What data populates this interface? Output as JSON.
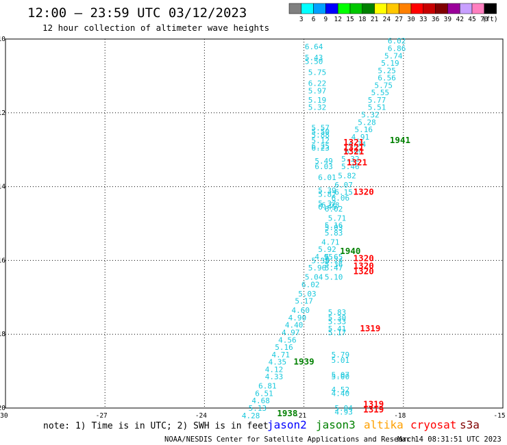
{
  "header": {
    "title": "12:00 — 23:59 UTC 03/12/2023",
    "subtitle": "12 hour collection of altimeter wave heights"
  },
  "colorbar": {
    "labels": [
      "3",
      "6",
      "9",
      "12",
      "15",
      "18",
      "21",
      "24",
      "27",
      "30",
      "33",
      "36",
      "39",
      "42",
      "45",
      "70"
    ],
    "unit": "(ft)",
    "colors": [
      "#808080",
      "#00ffff",
      "#00a0ff",
      "#0000ff",
      "#00ff00",
      "#00c800",
      "#008000",
      "#ffff00",
      "#ffc800",
      "#ff8000",
      "#ff0000",
      "#c80000",
      "#800000",
      "#9a009a",
      "#c8a0ff",
      "#ff80c0",
      "#000000"
    ]
  },
  "footer": {
    "note": "note: 1) Time is in UTC; 2) SWH is in feet",
    "legend": [
      {
        "name": "jason2",
        "color": "#0000ff"
      },
      {
        "name": "jason3",
        "color": "#008000"
      },
      {
        "name": "altika",
        "color": "#ffa000"
      },
      {
        "name": "cryosat",
        "color": "#ff0000"
      },
      {
        "name": "s3a",
        "color": "#800000"
      }
    ],
    "credit": "NOAA/NESDIS Center for Satellite Applications and Research",
    "timestamp": "Mar 14 08:31:51 UTC 2023"
  },
  "chart_data": {
    "type": "scatter",
    "xlim": [
      -30,
      -15
    ],
    "ylim": [
      -20,
      -10
    ],
    "x_ticks": [
      -30,
      -27,
      -24,
      -21,
      -18,
      -15
    ],
    "y_ticks": [
      -10,
      -12,
      -14,
      -16,
      -18,
      -20
    ],
    "x_tick_labels": [
      "-30",
      "-27",
      "-24",
      "-21",
      "-18",
      "-15"
    ],
    "y_tick_labels": [
      "-10",
      "-12",
      "-14",
      "-16",
      "-18",
      "-20"
    ],
    "grid": true,
    "point_color": "#19c8dc",
    "points": [
      {
        "x": -20.7,
        "y": -10.2,
        "label": "6.64"
      },
      {
        "x": -20.7,
        "y": -10.5,
        "label": "5.43"
      },
      {
        "x": -20.7,
        "y": -10.6,
        "label": "5.50"
      },
      {
        "x": -20.6,
        "y": -10.9,
        "label": "5.75"
      },
      {
        "x": -20.6,
        "y": -11.2,
        "label": "6.22"
      },
      {
        "x": -20.6,
        "y": -11.4,
        "label": "5.97"
      },
      {
        "x": -20.6,
        "y": -11.65,
        "label": "5.19"
      },
      {
        "x": -20.6,
        "y": -11.85,
        "label": "5.32"
      },
      {
        "x": -20.5,
        "y": -12.4,
        "label": "5.57"
      },
      {
        "x": -20.5,
        "y": -12.5,
        "label": "5.50"
      },
      {
        "x": -20.5,
        "y": -12.6,
        "label": "5.88"
      },
      {
        "x": -20.5,
        "y": -12.75,
        "label": "5.12"
      },
      {
        "x": -20.5,
        "y": -12.9,
        "label": "6.25"
      },
      {
        "x": -20.5,
        "y": -12.95,
        "label": "6.23"
      },
      {
        "x": -20.4,
        "y": -13.3,
        "label": "5.49"
      },
      {
        "x": -20.4,
        "y": -13.45,
        "label": "6.03"
      },
      {
        "x": -20.3,
        "y": -13.75,
        "label": "6.01"
      },
      {
        "x": -20.3,
        "y": -14.1,
        "label": "5.39"
      },
      {
        "x": -20.3,
        "y": -14.2,
        "label": "5.82"
      },
      {
        "x": -20.3,
        "y": -14.45,
        "label": "5.37"
      },
      {
        "x": -20.3,
        "y": -14.55,
        "label": "6.45"
      },
      {
        "x": -20.1,
        "y": -14.6,
        "label": "6.02"
      },
      {
        "x": -20.2,
        "y": -14.5,
        "label": "6.28"
      },
      {
        "x": -20.0,
        "y": -14.85,
        "label": "5.71"
      },
      {
        "x": -20.1,
        "y": -15.05,
        "label": "5.16"
      },
      {
        "x": -20.1,
        "y": -15.1,
        "label": "5.03"
      },
      {
        "x": -20.1,
        "y": -15.25,
        "label": "5.83"
      },
      {
        "x": -20.2,
        "y": -15.5,
        "label": "4.71"
      },
      {
        "x": -20.3,
        "y": -15.7,
        "label": "5.92"
      },
      {
        "x": -20.4,
        "y": -15.9,
        "label": "4.95"
      },
      {
        "x": -20.1,
        "y": -15.9,
        "label": "5.65"
      },
      {
        "x": -20.1,
        "y": -16.0,
        "label": "5.74"
      },
      {
        "x": -20.5,
        "y": -16.0,
        "label": "5.38"
      },
      {
        "x": -20.1,
        "y": -16.1,
        "label": "5.36"
      },
      {
        "x": -20.6,
        "y": -16.2,
        "label": "5.96"
      },
      {
        "x": -20.1,
        "y": -16.2,
        "label": "5.47"
      },
      {
        "x": -20.7,
        "y": -16.45,
        "label": "5.04"
      },
      {
        "x": -20.1,
        "y": -16.45,
        "label": "5.10"
      },
      {
        "x": -20.8,
        "y": -16.65,
        "label": "6.02"
      },
      {
        "x": -20.9,
        "y": -16.9,
        "label": "5.03"
      },
      {
        "x": -21.0,
        "y": -17.1,
        "label": "5.17"
      },
      {
        "x": -21.1,
        "y": -17.35,
        "label": "4.60"
      },
      {
        "x": -20.0,
        "y": -17.4,
        "label": "5.83"
      },
      {
        "x": -21.2,
        "y": -17.55,
        "label": "4.90"
      },
      {
        "x": -20.0,
        "y": -17.55,
        "label": "5.30"
      },
      {
        "x": -20.0,
        "y": -17.65,
        "label": "5.33"
      },
      {
        "x": -21.3,
        "y": -17.75,
        "label": "4.40"
      },
      {
        "x": -20.0,
        "y": -17.85,
        "label": "5.41"
      },
      {
        "x": -21.4,
        "y": -17.95,
        "label": "4.97"
      },
      {
        "x": -20.0,
        "y": -17.95,
        "label": "5.17"
      },
      {
        "x": -21.5,
        "y": -18.15,
        "label": "4.56"
      },
      {
        "x": -21.6,
        "y": -18.35,
        "label": "5.16"
      },
      {
        "x": -21.7,
        "y": -18.55,
        "label": "4.71"
      },
      {
        "x": -19.9,
        "y": -18.55,
        "label": "5.79"
      },
      {
        "x": -21.8,
        "y": -18.75,
        "label": "4.35"
      },
      {
        "x": -19.9,
        "y": -18.7,
        "label": "5.01"
      },
      {
        "x": -21.9,
        "y": -18.95,
        "label": "4.12"
      },
      {
        "x": -21.9,
        "y": -19.15,
        "label": "4.33"
      },
      {
        "x": -19.9,
        "y": -19.1,
        "label": "5.07"
      },
      {
        "x": -19.9,
        "y": -19.15,
        "label": "5.00"
      },
      {
        "x": -22.1,
        "y": -19.4,
        "label": "6.81"
      },
      {
        "x": -19.9,
        "y": -19.5,
        "label": "4.52"
      },
      {
        "x": -22.2,
        "y": -19.6,
        "label": "6.51"
      },
      {
        "x": -19.9,
        "y": -19.6,
        "label": "4.40"
      },
      {
        "x": -22.3,
        "y": -19.8,
        "label": "4.68"
      },
      {
        "x": -22.4,
        "y": -20.0,
        "label": "5.13"
      },
      {
        "x": -19.8,
        "y": -20.0,
        "label": "5.04"
      },
      {
        "x": -22.6,
        "y": -20.2,
        "label": "4.28"
      },
      {
        "x": -19.8,
        "y": -20.1,
        "label": "4.93"
      },
      {
        "x": -18.2,
        "y": -10.05,
        "label": "6.02"
      },
      {
        "x": -18.2,
        "y": -10.25,
        "label": "6.86"
      },
      {
        "x": -18.3,
        "y": -10.45,
        "label": "5.74"
      },
      {
        "x": -18.4,
        "y": -10.65,
        "label": "5.19"
      },
      {
        "x": -18.5,
        "y": -10.85,
        "label": "5.25"
      },
      {
        "x": -18.5,
        "y": -11.05,
        "label": "6.56"
      },
      {
        "x": -18.6,
        "y": -11.25,
        "label": "5.75"
      },
      {
        "x": -18.7,
        "y": -11.45,
        "label": "5.55"
      },
      {
        "x": -18.8,
        "y": -11.65,
        "label": "5.77"
      },
      {
        "x": -18.8,
        "y": -11.85,
        "label": "5.51"
      },
      {
        "x": -19.0,
        "y": -12.05,
        "label": "5.32"
      },
      {
        "x": -19.1,
        "y": -12.25,
        "label": "5.28"
      },
      {
        "x": -19.2,
        "y": -12.45,
        "label": "5.16"
      },
      {
        "x": -19.3,
        "y": -12.65,
        "label": "4.91"
      },
      {
        "x": -19.4,
        "y": -12.85,
        "label": "4.74"
      },
      {
        "x": -19.5,
        "y": -13.05,
        "label": "6.99"
      },
      {
        "x": -19.6,
        "y": -13.25,
        "label": "5.32"
      },
      {
        "x": -19.6,
        "y": -13.45,
        "label": "5.46"
      },
      {
        "x": -19.7,
        "y": -13.7,
        "label": "5.82"
      },
      {
        "x": -19.8,
        "y": -13.95,
        "label": "6.07"
      },
      {
        "x": -19.8,
        "y": -14.15,
        "label": "6.15"
      },
      {
        "x": -19.9,
        "y": -14.3,
        "label": "6.06"
      }
    ],
    "pass_times": [
      {
        "x": -18.1,
        "y": -12.75,
        "label": "1941",
        "series": "jason3"
      },
      {
        "x": -19.5,
        "y": -12.8,
        "label": "1321",
        "series": "cryosat"
      },
      {
        "x": -19.5,
        "y": -12.95,
        "label": "1321",
        "series": "cryosat"
      },
      {
        "x": -19.5,
        "y": -13.05,
        "label": "1321",
        "series": "cryosat"
      },
      {
        "x": -19.4,
        "y": -13.35,
        "label": "1321",
        "series": "cryosat"
      },
      {
        "x": -19.2,
        "y": -14.15,
        "label": "1320",
        "series": "cryosat"
      },
      {
        "x": -19.6,
        "y": -15.75,
        "label": "1940",
        "series": "jason3"
      },
      {
        "x": -19.2,
        "y": -15.95,
        "label": "1320",
        "series": "cryosat"
      },
      {
        "x": -19.2,
        "y": -16.15,
        "label": "1320",
        "series": "cryosat"
      },
      {
        "x": -19.2,
        "y": -16.3,
        "label": "1320",
        "series": "cryosat"
      },
      {
        "x": -19.0,
        "y": -17.85,
        "label": "1319",
        "series": "cryosat"
      },
      {
        "x": -21.0,
        "y": -18.75,
        "label": "1939",
        "series": "jason3"
      },
      {
        "x": -18.9,
        "y": -19.9,
        "label": "1319",
        "series": "cryosat"
      },
      {
        "x": -18.9,
        "y": -20.05,
        "label": "1319",
        "series": "cryosat"
      },
      {
        "x": -21.5,
        "y": -20.15,
        "label": "1938",
        "series": "jason3"
      }
    ]
  }
}
